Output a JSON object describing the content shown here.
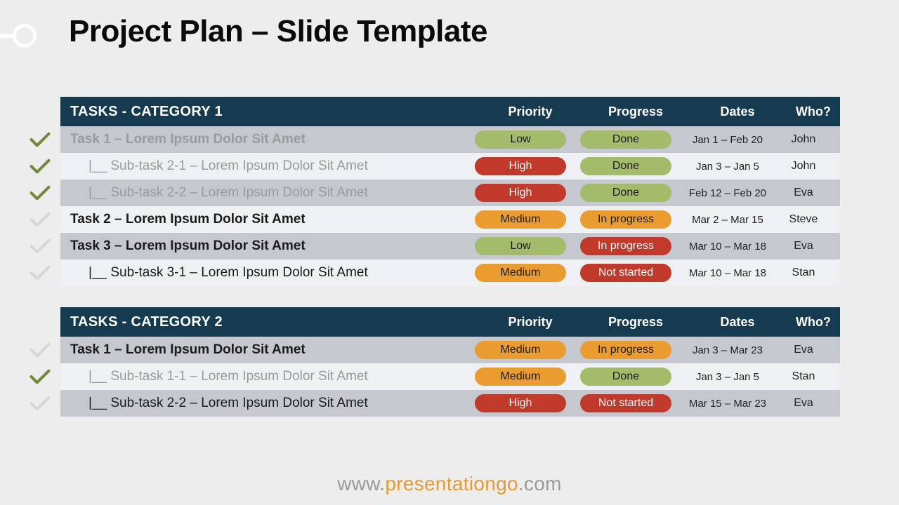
{
  "title": "Project Plan – Slide Template",
  "colors": {
    "header_bg": "#163b50",
    "header_text": "#ffffff",
    "row_alt_a": "#c5c9cf",
    "row_alt_b": "#eef0f3",
    "done_text": "#9a9a9a",
    "check_done": "#74893c",
    "check_idle": "#d7d7d8",
    "pill_low": "#a3bb6b",
    "pill_medium": "#eb9c30",
    "pill_high": "#c0392b",
    "pill_done": "#a3bb6b",
    "pill_inprog_orange": "#eb9c30",
    "pill_inprog_red": "#c0392b",
    "pill_notstarted": "#c0392b",
    "background": "#eeedee",
    "title_text": "#0a0a0a"
  },
  "columns": {
    "tasks": "TASKS",
    "priority": "Priority",
    "progress": "Progress",
    "dates": "Dates",
    "who": "Who?"
  },
  "footer": {
    "pre": "www.",
    "mid": "presentationgo",
    "post": ".com"
  },
  "priority_styles": {
    "Low": {
      "bg": "#a3bb6b",
      "white": false
    },
    "Medium": {
      "bg": "#eb9c30",
      "white": false
    },
    "High": {
      "bg": "#c0392b",
      "white": true
    }
  },
  "progress_styles": {
    "Done": {
      "bg": "#a3bb6b",
      "white": false
    },
    "In progress": {
      "bg": "#eb9c30",
      "white": false
    },
    "In progress red": {
      "bg": "#c0392b",
      "white": true
    },
    "Not started": {
      "bg": "#c0392b",
      "white": true
    }
  },
  "categories": [
    {
      "name": "TASKS - CATEGORY 1",
      "rows": [
        {
          "label": "Task 1 – Lorem Ipsum Dolor Sit Amet",
          "sub": false,
          "done": true,
          "priority": "Low",
          "progress": "Done",
          "progress_variant": "Done",
          "dates": "Jan 1 – Feb 20",
          "who": "John"
        },
        {
          "label": "|__ Sub-task 2-1 – Lorem Ipsum Dolor Sit Amet",
          "sub": true,
          "done": true,
          "priority": "High",
          "progress": "Done",
          "progress_variant": "Done",
          "dates": "Jan 3 – Jan 5",
          "who": "John"
        },
        {
          "label": "|__ Sub-task 2-2 – Lorem Ipsum Dolor Sit Amet",
          "sub": true,
          "done": true,
          "priority": "High",
          "progress": "Done",
          "progress_variant": "Done",
          "dates": "Feb 12 – Feb 20",
          "who": "Eva"
        },
        {
          "label": "Task 2 – Lorem Ipsum Dolor Sit Amet",
          "sub": false,
          "done": false,
          "priority": "Medium",
          "progress": "In progress",
          "progress_variant": "In progress",
          "dates": "Mar 2 – Mar 15",
          "who": "Steve"
        },
        {
          "label": "Task 3 – Lorem Ipsum Dolor Sit Amet",
          "sub": false,
          "done": false,
          "priority": "Low",
          "progress": "In progress",
          "progress_variant": "In progress red",
          "dates": "Mar 10 – Mar 18",
          "who": "Eva"
        },
        {
          "label": "|__ Sub-task 3-1 – Lorem Ipsum Dolor Sit Amet",
          "sub": true,
          "done": false,
          "priority": "Medium",
          "progress": "Not started",
          "progress_variant": "Not started",
          "dates": "Mar 10 – Mar 18",
          "who": "Stan"
        }
      ]
    },
    {
      "name": "TASKS - CATEGORY 2",
      "rows": [
        {
          "label": "Task 1 – Lorem Ipsum Dolor Sit Amet",
          "sub": false,
          "done": false,
          "priority": "Medium",
          "progress": "In progress",
          "progress_variant": "In progress",
          "dates": "Jan 3 – Mar 23",
          "who": "Eva"
        },
        {
          "label": "|__ Sub-task 1-1 – Lorem Ipsum Dolor Sit Amet",
          "sub": true,
          "done": true,
          "priority": "Medium",
          "progress": "Done",
          "progress_variant": "Done",
          "dates": "Jan 3 – Jan 5",
          "who": "Stan"
        },
        {
          "label": "|__ Sub-task 2-2 – Lorem Ipsum Dolor Sit Amet",
          "sub": true,
          "done": false,
          "priority": "High",
          "progress": "Not started",
          "progress_variant": "Not started",
          "dates": "Mar 15 – Mar 23",
          "who": "Eva"
        }
      ]
    }
  ]
}
